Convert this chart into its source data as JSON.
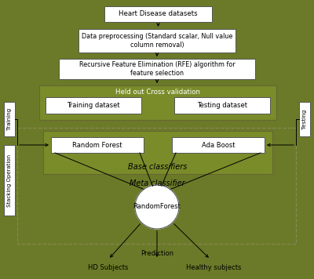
{
  "bg_color": "#6b7a28",
  "box_fc": "#ffffff",
  "box_ec": "#555555",
  "green_fc": "#7a8c2a",
  "dashed_ec": "#888855",
  "title_box": "Heart Disease datasets",
  "preprocess_box": "Data preprocessing (Standard scalar, Null value\ncolumn removal)",
  "rfe_box": "Recursive Feature Elimination (RFE) algorithm for\nfeature selection",
  "held_out_label": "Held out Cross validation",
  "training_box": "Training dataset",
  "testing_box": "Testing dataset",
  "rf_box": "Random Forest",
  "ada_box": "Ada Boost",
  "base_label": "Base classifiers",
  "meta_label": "Meta classifier",
  "circle_label": "RandomForest",
  "prediction_label": "Prediction",
  "hd_label": "HD Subjects",
  "healthy_label": "Healthy subjects",
  "training_side_label": "Training",
  "testing_side_label": "Testing",
  "stacking_label": "Stacking Operation"
}
